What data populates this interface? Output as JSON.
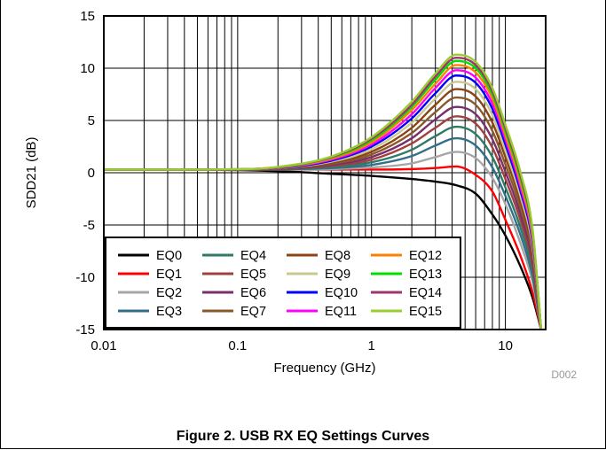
{
  "caption": "Figure 2. USB RX EQ Settings Curves",
  "chart_data": {
    "type": "line",
    "title": "",
    "xlabel": "Frequency (GHz)",
    "ylabel": "SDD21 (dB)",
    "xscale": "log",
    "xlim": [
      0.01,
      20
    ],
    "ylim": [
      -15,
      15
    ],
    "xticks": [
      {
        "v": 0.01,
        "label": "0.01"
      },
      {
        "v": 0.1,
        "label": "0.1"
      },
      {
        "v": 1,
        "label": "1"
      },
      {
        "v": 10,
        "label": "10"
      }
    ],
    "yticks": [
      {
        "v": 15,
        "label": "15"
      },
      {
        "v": 10,
        "label": "10"
      },
      {
        "v": 5,
        "label": "5"
      },
      {
        "v": 0,
        "label": "0"
      },
      {
        "v": -5,
        "label": "-5"
      },
      {
        "v": -10,
        "label": "-10"
      },
      {
        "v": -15,
        "label": "-15"
      }
    ],
    "grid": true,
    "legend_position": "bottom-left",
    "code_label": "D002",
    "x": [
      0.01,
      0.03,
      0.1,
      0.2,
      0.5,
      1,
      2,
      3,
      4.3,
      6,
      8,
      10,
      13,
      16,
      18.5
    ],
    "series": [
      {
        "name": "EQ0",
        "color": "#000000",
        "values": [
          0.3,
          0.3,
          0.25,
          0.15,
          -0.1,
          -0.3,
          -0.6,
          -0.85,
          -1.2,
          -2.0,
          -4.0,
          -6.0,
          -9.0,
          -12.0,
          -15.0
        ]
      },
      {
        "name": "EQ1",
        "color": "#ff0000",
        "values": [
          0.3,
          0.3,
          0.3,
          0.3,
          0.3,
          0.3,
          0.35,
          0.45,
          0.6,
          -0.2,
          -1.8,
          -4.5,
          -8.0,
          -11.5,
          -15.0
        ]
      },
      {
        "name": "EQ2",
        "color": "#a6a6a6",
        "values": [
          0.3,
          0.3,
          0.3,
          0.3,
          0.35,
          0.5,
          0.9,
          1.5,
          2.0,
          1.4,
          -0.5,
          -3.0,
          -6.8,
          -10.5,
          -15.0
        ]
      },
      {
        "name": "EQ3",
        "color": "#336f8a",
        "values": [
          0.3,
          0.3,
          0.3,
          0.32,
          0.45,
          0.75,
          1.6,
          2.6,
          3.3,
          2.6,
          0.5,
          -2.2,
          -6.0,
          -10.0,
          -15.0
        ]
      },
      {
        "name": "EQ4",
        "color": "#2e7a68",
        "values": [
          0.3,
          0.3,
          0.3,
          0.34,
          0.55,
          1.0,
          2.2,
          3.5,
          4.4,
          3.7,
          1.5,
          -1.4,
          -5.3,
          -9.5,
          -15.0
        ]
      },
      {
        "name": "EQ5",
        "color": "#a0413f",
        "values": [
          0.3,
          0.3,
          0.3,
          0.36,
          0.65,
          1.25,
          2.8,
          4.3,
          5.4,
          4.7,
          2.4,
          -0.6,
          -4.6,
          -9.0,
          -15.0
        ]
      },
      {
        "name": "EQ6",
        "color": "#7a2f6c",
        "values": [
          0.3,
          0.3,
          0.31,
          0.38,
          0.75,
          1.5,
          3.3,
          5.1,
          6.3,
          5.6,
          3.2,
          0.1,
          -4.0,
          -8.5,
          -15.0
        ]
      },
      {
        "name": "EQ7",
        "color": "#8b5a2b",
        "values": [
          0.3,
          0.3,
          0.31,
          0.4,
          0.85,
          1.75,
          3.8,
          5.8,
          7.2,
          6.5,
          4.0,
          0.8,
          -3.4,
          -8.0,
          -15.0
        ]
      },
      {
        "name": "EQ8",
        "color": "#8b4513",
        "values": [
          0.3,
          0.3,
          0.31,
          0.42,
          0.95,
          2.0,
          4.3,
          6.5,
          8.0,
          7.3,
          4.8,
          1.5,
          -2.8,
          -7.6,
          -15.0
        ]
      },
      {
        "name": "EQ9",
        "color": "#c8c890",
        "values": [
          0.3,
          0.3,
          0.32,
          0.44,
          1.05,
          2.25,
          4.8,
          7.1,
          8.7,
          8.0,
          5.5,
          2.1,
          -2.3,
          -7.2,
          -15.0
        ]
      },
      {
        "name": "EQ10",
        "color": "#0000ff",
        "values": [
          0.3,
          0.3,
          0.32,
          0.46,
          1.15,
          2.5,
          5.2,
          7.6,
          9.3,
          8.6,
          6.1,
          2.7,
          -1.8,
          -6.8,
          -15.0
        ]
      },
      {
        "name": "EQ11",
        "color": "#ff00ff",
        "values": [
          0.3,
          0.3,
          0.32,
          0.48,
          1.25,
          2.7,
          5.6,
          8.1,
          9.8,
          9.1,
          6.6,
          3.2,
          -1.4,
          -6.5,
          -15.0
        ]
      },
      {
        "name": "EQ12",
        "color": "#ff7f00",
        "values": [
          0.3,
          0.3,
          0.32,
          0.5,
          1.35,
          2.9,
          6.0,
          8.5,
          10.3,
          9.6,
          7.1,
          3.6,
          -1.0,
          -6.2,
          -15.0
        ]
      },
      {
        "name": "EQ13",
        "color": "#00e000",
        "values": [
          0.3,
          0.3,
          0.33,
          0.52,
          1.45,
          3.1,
          6.3,
          8.9,
          10.7,
          10.0,
          7.5,
          4.0,
          -0.6,
          -5.9,
          -15.0
        ]
      },
      {
        "name": "EQ14",
        "color": "#a0346e",
        "values": [
          0.3,
          0.3,
          0.33,
          0.54,
          1.5,
          3.25,
          6.5,
          9.2,
          11.0,
          10.3,
          7.8,
          4.3,
          -0.3,
          -5.7,
          -15.0
        ]
      },
      {
        "name": "EQ15",
        "color": "#9acd32",
        "values": [
          0.3,
          0.3,
          0.33,
          0.56,
          1.55,
          3.4,
          6.8,
          9.5,
          11.3,
          10.6,
          8.1,
          4.6,
          0.0,
          -5.5,
          -15.0
        ]
      }
    ]
  }
}
